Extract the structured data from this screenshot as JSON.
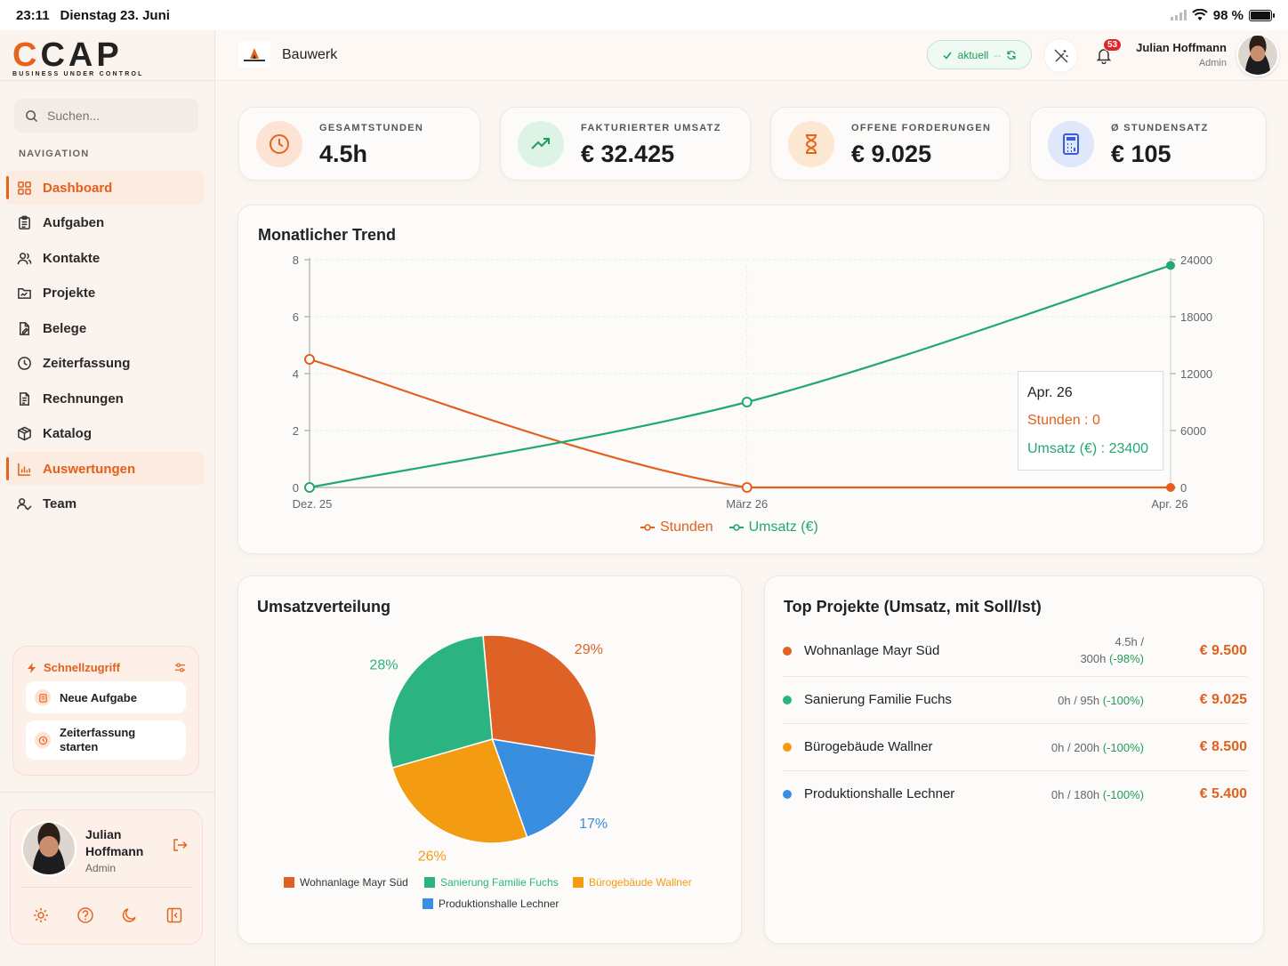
{
  "statusbar": {
    "time": "23:11",
    "date": "Dienstag 23. Juni",
    "battery": "98 %",
    "battery_level": 0.98
  },
  "brand": {
    "name_c": "C",
    "name_rest": "CAP",
    "tagline": "BUSINESS UNDER CONTROL"
  },
  "search": {
    "placeholder": "Suchen..."
  },
  "nav": {
    "title": "NAVIGATION",
    "items": [
      {
        "label": "Dashboard",
        "icon": "grid-icon"
      },
      {
        "label": "Aufgaben",
        "icon": "clipboard-icon"
      },
      {
        "label": "Kontakte",
        "icon": "users-icon"
      },
      {
        "label": "Projekte",
        "icon": "folder-icon"
      },
      {
        "label": "Belege",
        "icon": "file-edit-icon"
      },
      {
        "label": "Zeiterfassung",
        "icon": "clock-icon"
      },
      {
        "label": "Rechnungen",
        "icon": "file-text-icon"
      },
      {
        "label": "Katalog",
        "icon": "package-icon"
      },
      {
        "label": "Auswertungen",
        "icon": "bar-chart-icon"
      },
      {
        "label": "Team",
        "icon": "team-icon"
      }
    ]
  },
  "quick": {
    "title": "Schnellzugriff",
    "new_task": "Neue Aufgabe",
    "time_tracking_1": "Zeiterfassung",
    "time_tracking_2": "starten"
  },
  "profile": {
    "name": "Julian Hoffmann",
    "role": "Admin"
  },
  "topbar": {
    "project": "Bauwerk",
    "status": "aktuell",
    "status_sep": "--",
    "notifications": "53",
    "user_name": "Julian Hoffmann",
    "user_role": "Admin"
  },
  "kpis": [
    {
      "label": "GESAMTSTUNDEN",
      "value": "4.5h",
      "color": "#e8631a"
    },
    {
      "label": "FAKTURIERTER UMSATZ",
      "value": "€ 32.425",
      "color": "#1f9c5a"
    },
    {
      "label": "OFFENE FORDERUNGEN",
      "value": "€ 9.025",
      "color": "#e8631a"
    },
    {
      "label": "Ø STUNDENSATZ",
      "value": "€ 105",
      "color": "#3b5bdb"
    }
  ],
  "trend": {
    "title": "Monatlicher Trend",
    "tooltip": {
      "title": "Apr. 26",
      "hours": "Stunden : 0",
      "revenue": "Umsatz (€) : 23400"
    },
    "legend": {
      "hours": "Stunden",
      "revenue": "Umsatz (€)"
    }
  },
  "chart_data": [
    {
      "type": "line",
      "title": "Monatlicher Trend",
      "categories": [
        "Dez. 25",
        "März 26",
        "Apr. 26"
      ],
      "ylim": [
        0,
        8
      ],
      "y2lim": [
        0,
        24000
      ],
      "yticks": [
        "0",
        "2",
        "4",
        "6",
        "8"
      ],
      "y2ticks": [
        "0",
        "6000",
        "12000",
        "18000",
        "24000"
      ],
      "series": [
        {
          "name": "Stunden",
          "axis": "left",
          "color": "#e2601c",
          "values": [
            4.5,
            0,
            0
          ]
        },
        {
          "name": "Umsatz (€)",
          "axis": "right",
          "color": "#22a872",
          "values": [
            0,
            9000,
            23400
          ]
        }
      ],
      "legend": "bottom",
      "grid": true
    },
    {
      "type": "pie",
      "title": "Umsatzverteilung",
      "categories": [
        "Wohnanlage Mayr Süd",
        "Sanierung Familie Fuchs",
        "Bürogebäude Wallner",
        "Produktionshalle Lechner"
      ],
      "values": [
        29,
        28,
        26,
        17
      ],
      "labels": [
        "29%",
        "28%",
        "26%",
        "17%"
      ],
      "colors": [
        "#de6225",
        "#2bb482",
        "#f39c12",
        "#3a8ee0"
      ],
      "legend": "bottom"
    }
  ],
  "top_projects": {
    "title": "Top Projekte (Umsatz, mit Soll/Ist)",
    "rows": [
      {
        "name": "Wohnanlage Mayr Süd",
        "hours_a": "4.5h /",
        "hours_b": "300h",
        "pct": "(-98%)",
        "amount": "€ 9.500",
        "color": "#de6225"
      },
      {
        "name": "Sanierung Familie Fuchs",
        "hours_a": "",
        "hours_b": "0h / 95h",
        "pct": "(-100%)",
        "amount": "€ 9.025",
        "color": "#2bb482"
      },
      {
        "name": "Bürogebäude Wallner",
        "hours_a": "",
        "hours_b": "0h / 200h",
        "pct": "(-100%)",
        "amount": "€ 8.500",
        "color": "#f39c12"
      },
      {
        "name": "Produktionshalle Lechner",
        "hours_a": "",
        "hours_b": "0h / 180h",
        "pct": "(-100%)",
        "amount": "€ 5.400",
        "color": "#3a8ee0"
      }
    ]
  }
}
